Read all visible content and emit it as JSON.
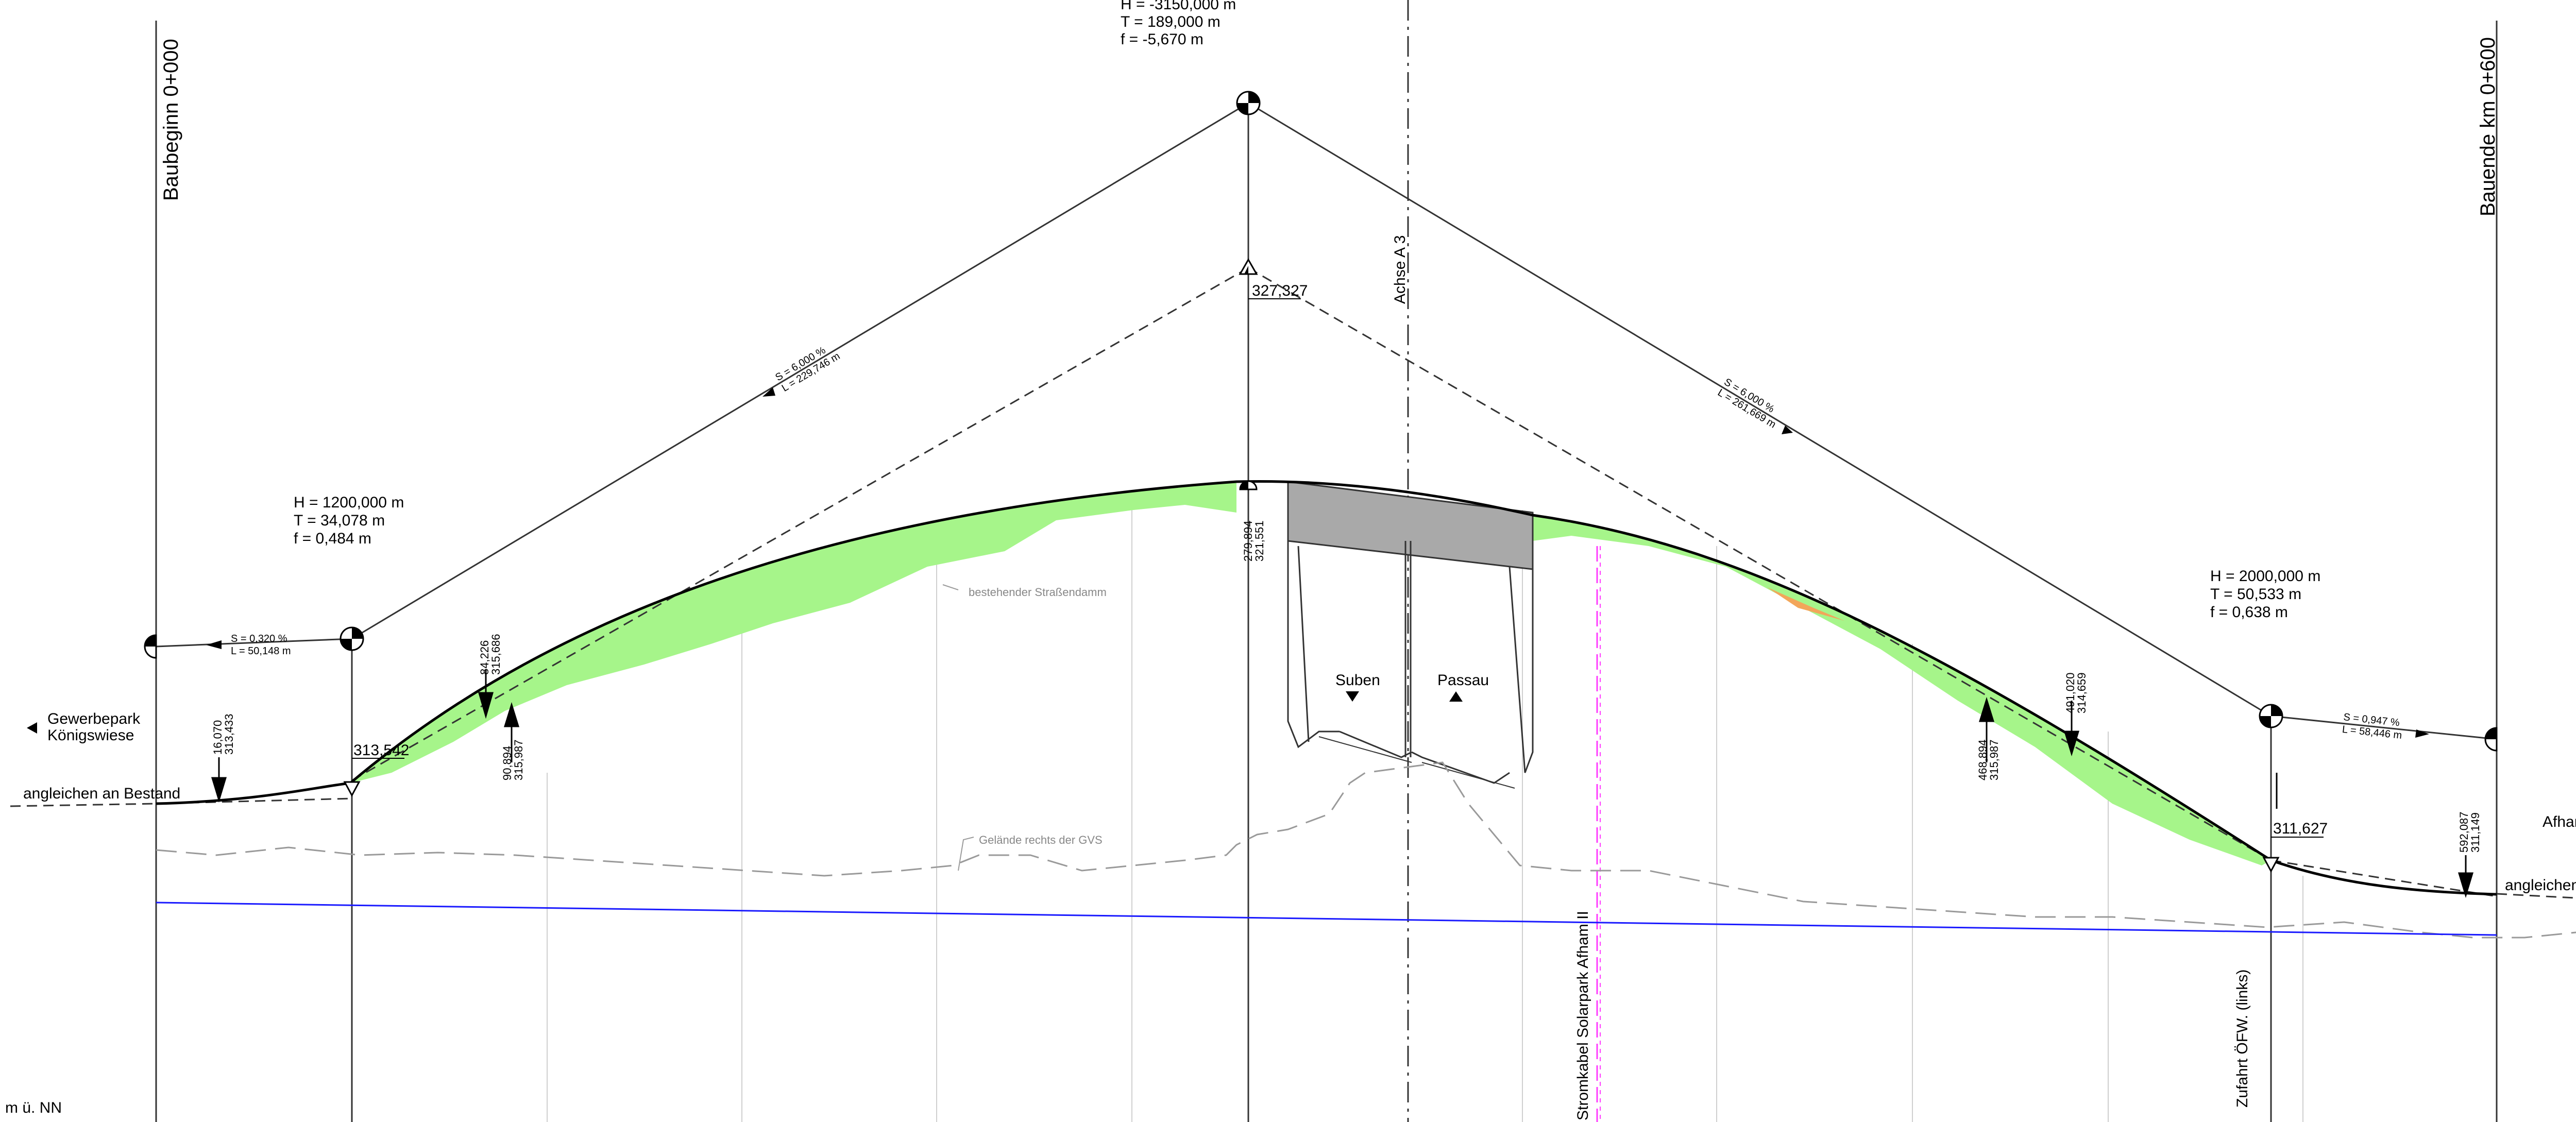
{
  "labels": {
    "baubeginn": "Baubeginn 0+000",
    "bauende": "Bauende km 0+600",
    "achse": "Achse A 3",
    "stromkabel": "Stromkabel Solarpark Afham II",
    "zufahrt": "Zufahrt ÖFW. (links)",
    "gewerbepark_1": "Gewerbepark",
    "gewerbepark_2": "Königswiese",
    "afham": "Afham",
    "angleichen_left": "angleichen an Bestand",
    "angleichen_right": "angleichen an Bestand",
    "strassendamm": "bestehender Straßendamm",
    "gelaende": "Gelände rechts der GVS",
    "suben": "Suben",
    "passau": "Passau",
    "datum": "m ü. NN"
  },
  "curves": {
    "top": {
      "H": "H = -3150,000 m",
      "T": "T =    189,000 m",
      "f": "f =      -5,670 m"
    },
    "left": {
      "H": "H = 1200,000 m",
      "T": "T =    34,078 m",
      "f": "f =      0,484 m"
    },
    "right": {
      "H": "H =  2000,000 m",
      "T": "T =     50,533 m",
      "f": "f =       0,638 m"
    }
  },
  "grades": {
    "start": {
      "S": "S = 0,320 %",
      "L": "L = 50,148 m"
    },
    "left_tangent": {
      "S": "S = 6,000 %",
      "L": "L = 229,746 m"
    },
    "right_tangent": {
      "S": "S = 6,000 %",
      "L": "L = 261,669 m"
    },
    "end": {
      "S": "S = 0,947 %",
      "L": "L = 58,446 m"
    }
  },
  "elevations": {
    "pi_left": "313,542",
    "pi_top": "327,327",
    "pi_right": "311,627"
  },
  "markers": {
    "m1": {
      "a": "16,070",
      "b": "313,433"
    },
    "m2": {
      "a": "84,226",
      "b": "315,686"
    },
    "m3": {
      "a": "90,894",
      "b": "315,987"
    },
    "m4": {
      "a": "279,894",
      "b": "321,551"
    },
    "m5": {
      "a": "468,894",
      "b": "315,987"
    },
    "m6": {
      "a": "491,020",
      "b": "314,659"
    },
    "m7": {
      "a": "592,087",
      "b": "311,149"
    }
  },
  "colors": {
    "fill_green": "#a6f58a",
    "bridge_gray": "#a9a9a9",
    "water_line": "#1a1aff",
    "cable_magenta": "#ff3cff"
  }
}
